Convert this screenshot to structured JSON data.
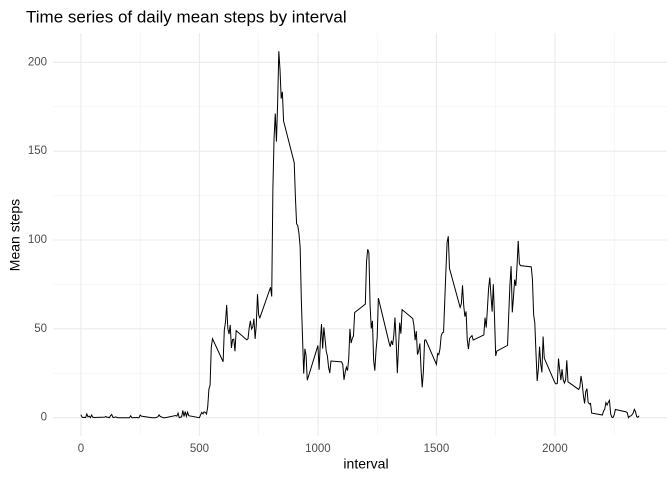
{
  "chart_data": {
    "type": "line",
    "title": "Time series of daily mean steps by interval",
    "x_label": "interval",
    "y_label": "Mean steps",
    "x": [
      0,
      5,
      10,
      15,
      20,
      25,
      30,
      35,
      40,
      45,
      50,
      55,
      100,
      105,
      110,
      115,
      120,
      125,
      130,
      135,
      140,
      145,
      150,
      155,
      200,
      205,
      210,
      215,
      220,
      225,
      230,
      235,
      240,
      245,
      250,
      255,
      300,
      305,
      310,
      315,
      320,
      325,
      330,
      335,
      340,
      345,
      350,
      355,
      400,
      405,
      410,
      415,
      420,
      425,
      430,
      435,
      440,
      445,
      450,
      455,
      500,
      505,
      510,
      515,
      520,
      525,
      530,
      535,
      540,
      545,
      550,
      555,
      600,
      605,
      610,
      615,
      620,
      625,
      630,
      635,
      640,
      645,
      650,
      655,
      700,
      705,
      710,
      715,
      720,
      725,
      730,
      735,
      740,
      745,
      750,
      755,
      800,
      805,
      810,
      815,
      820,
      825,
      830,
      835,
      840,
      845,
      850,
      855,
      900,
      905,
      910,
      915,
      920,
      925,
      930,
      935,
      940,
      945,
      950,
      955,
      1000,
      1005,
      1010,
      1015,
      1020,
      1025,
      1030,
      1035,
      1040,
      1045,
      1050,
      1055,
      1100,
      1105,
      1110,
      1115,
      1120,
      1125,
      1130,
      1135,
      1140,
      1145,
      1150,
      1155,
      1200,
      1205,
      1210,
      1215,
      1220,
      1225,
      1230,
      1235,
      1240,
      1245,
      1250,
      1255,
      1300,
      1305,
      1310,
      1315,
      1320,
      1325,
      1330,
      1335,
      1340,
      1345,
      1350,
      1355,
      1400,
      1405,
      1410,
      1415,
      1420,
      1425,
      1430,
      1435,
      1440,
      1445,
      1450,
      1455,
      1500,
      1505,
      1510,
      1515,
      1520,
      1525,
      1530,
      1535,
      1540,
      1545,
      1550,
      1555,
      1600,
      1605,
      1610,
      1615,
      1620,
      1625,
      1630,
      1635,
      1640,
      1645,
      1650,
      1655,
      1700,
      1705,
      1710,
      1715,
      1720,
      1725,
      1730,
      1735,
      1740,
      1745,
      1750,
      1755,
      1800,
      1805,
      1810,
      1815,
      1820,
      1825,
      1830,
      1835,
      1840,
      1845,
      1850,
      1855,
      1900,
      1905,
      1910,
      1915,
      1920,
      1925,
      1930,
      1935,
      1940,
      1945,
      1950,
      1955,
      2000,
      2005,
      2010,
      2015,
      2020,
      2025,
      2030,
      2035,
      2040,
      2045,
      2050,
      2055,
      2100,
      2105,
      2110,
      2115,
      2120,
      2125,
      2130,
      2135,
      2140,
      2145,
      2150,
      2155,
      2200,
      2205,
      2210,
      2215,
      2220,
      2225,
      2230,
      2235,
      2240,
      2245,
      2250,
      2255,
      2300,
      2305,
      2310,
      2315,
      2320,
      2325,
      2330,
      2335,
      2340,
      2345,
      2350,
      2355
    ],
    "series": [
      {
        "color": "#000000",
        "values": [
          1.7,
          0.3,
          0.1,
          0.2,
          0.1,
          2.1,
          0.5,
          0.9,
          0,
          1.5,
          0.3,
          0.1,
          0.3,
          0.7,
          0.2,
          0.3,
          0,
          1.1,
          1.8,
          0.2,
          0.2,
          0.4,
          0.3,
          0,
          0,
          0,
          1.1,
          0,
          0,
          0.1,
          0,
          0.2,
          0,
          0,
          1.5,
          0.9,
          0,
          0,
          0,
          0,
          0.2,
          0.6,
          1.6,
          0.6,
          0.5,
          0.1,
          0,
          0,
          1.2,
          0.9,
          2.6,
          0,
          0.3,
          0.4,
          4.1,
          0.7,
          3.5,
          0.8,
          3.1,
          1.1,
          0,
          1.6,
          3,
          2.2,
          3.3,
          3,
          2.1,
          6.1,
          16,
          18.3,
          39.5,
          44.5,
          31.5,
          49.3,
          53.8,
          63.5,
          50,
          47.1,
          52.2,
          39.3,
          44,
          44.2,
          37.4,
          49,
          43.8,
          44.4,
          50.5,
          54.5,
          49.9,
          51,
          55.7,
          44.3,
          52.3,
          69.5,
          57.8,
          56.2,
          73.4,
          68.2,
          129.4,
          157.5,
          171.2,
          155.4,
          177.3,
          206.2,
          195.9,
          179.6,
          183.4,
          167,
          143.5,
          124,
          109.1,
          108.1,
          103.7,
          96,
          66.2,
          45.2,
          24.8,
          38.8,
          35,
          21.1,
          40.6,
          27,
          42.4,
          52.7,
          38.9,
          50.8,
          44.3,
          37.4,
          34.7,
          28.3,
          25.1,
          31.9,
          31.4,
          29.7,
          21.3,
          25.5,
          28.4,
          26.5,
          33.4,
          50,
          42,
          44.6,
          46,
          59.2,
          63.9,
          87.7,
          94.8,
          92.8,
          63.4,
          50.2,
          54.5,
          32.4,
          26.5,
          37.7,
          45.1,
          67.3,
          42.3,
          39.9,
          43.3,
          41,
          46.2,
          56.4,
          42.8,
          25.1,
          40,
          53.5,
          47.3,
          60.8,
          55.8,
          52,
          43.6,
          48.7,
          35.5,
          37.5,
          41.8,
          27.5,
          17.1,
          26.1,
          43.6,
          43.8,
          30,
          36.1,
          35.5,
          38.8,
          46,
          47.8,
          48.1,
          65.3,
          82.9,
          98.7,
          102.1,
          84,
          62.1,
          64.1,
          74.5,
          63.2,
          56.9,
          59.8,
          43.9,
          38.6,
          44.7,
          45.5,
          46.2,
          43.7,
          46.6,
          56.3,
          50.7,
          61.2,
          72.7,
          78.9,
          68.9,
          59.7,
          75.1,
          56.5,
          34.8,
          37.5,
          40.7,
          58,
          74.7,
          85.3,
          59.3,
          67.8,
          77.7,
          74.2,
          85.3,
          99.5,
          86.6,
          85.6,
          84.9,
          77.8,
          58,
          53.4,
          36.3,
          20.7,
          27.4,
          40,
          30.2,
          25.5,
          45.7,
          33.5,
          19.6,
          19,
          19.3,
          33.3,
          26.8,
          21.2,
          27.3,
          21.3,
          19.5,
          21.3,
          32.3,
          20.2,
          15.9,
          17.2,
          23.5,
          19.2,
          12.5,
          8,
          14.7,
          16.3,
          8.7,
          7.8,
          8.1,
          2.6,
          1.5,
          3.7,
          4.8,
          8.5,
          7.1,
          8.7,
          9.8,
          2.2,
          0.3,
          0.1,
          1.6,
          4.6,
          3.3,
          2.8,
          0,
          0.8,
          1,
          1.6,
          2.6,
          4.7,
          3.3,
          0.6,
          0.2,
          1.1
        ]
      }
    ],
    "xlim": [
      -117.75,
      2472.75
    ],
    "xticks": [
      0,
      500,
      1000,
      1500,
      2000
    ],
    "ylim": [
      -10.3,
      216.5
    ],
    "yticks": [
      0,
      50,
      100,
      150,
      200
    ],
    "grid": true
  }
}
